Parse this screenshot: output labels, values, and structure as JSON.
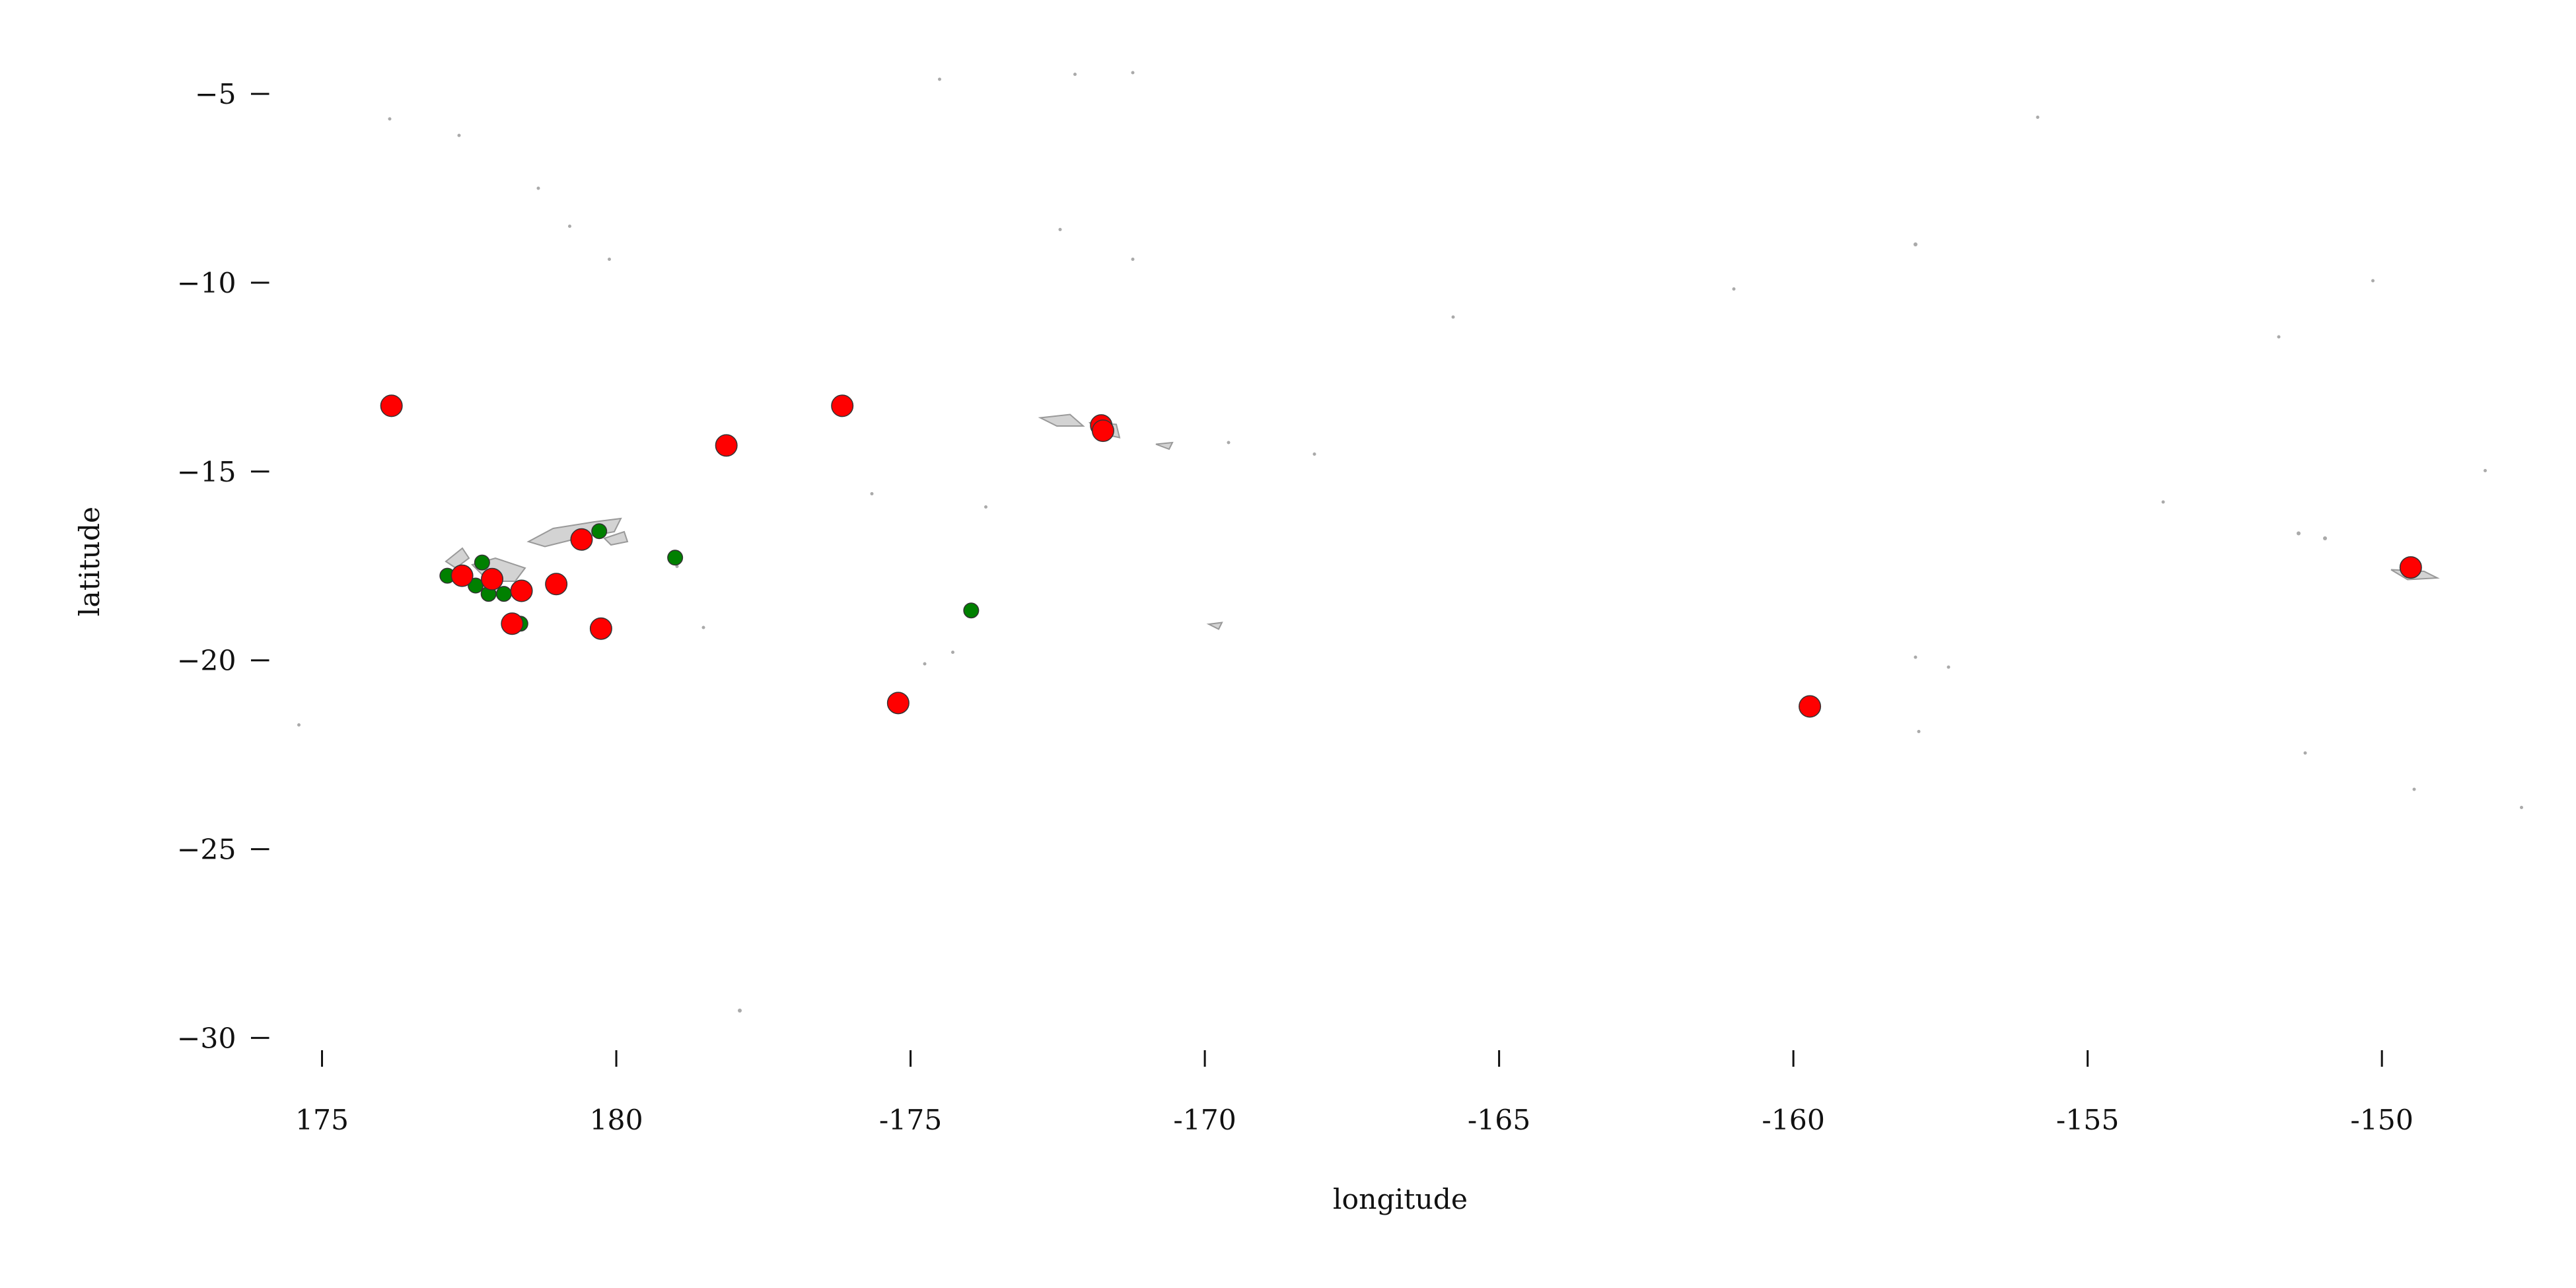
{
  "chart_data": {
    "type": "scatter",
    "xlabel": "longitude",
    "ylabel": "latitude",
    "xlim": [
      174.2,
      212.4
    ],
    "ylim": [
      -30.5,
      -4
    ],
    "xticks": [
      175,
      180,
      {
        "value": 185,
        "label": "-175"
      },
      {
        "value": 190,
        "label": "-170"
      },
      {
        "value": 195,
        "label": "-165"
      },
      {
        "value": 200,
        "label": "-160"
      },
      {
        "value": 205,
        "label": "-155"
      },
      {
        "value": 210,
        "label": "-150"
      }
    ],
    "yticks": [
      {
        "value": -5,
        "label": "−5"
      },
      {
        "value": -10,
        "label": "−10"
      },
      {
        "value": -15,
        "label": "−15"
      },
      {
        "value": -20,
        "label": "−20"
      },
      {
        "value": -25,
        "label": "−25"
      },
      {
        "value": -30,
        "label": "−30"
      }
    ],
    "grid": false,
    "series": [
      {
        "color": "green",
        "x": [
          177.13,
          177.72,
          177.61,
          177.83,
          178.09,
          178.37,
          179.71,
          181.0,
          186.03
        ],
        "values": [
          -17.76,
          -17.41,
          -18.02,
          -18.24,
          -18.24,
          -19.03,
          -16.58,
          -17.28,
          -18.68
        ]
      },
      {
        "color": "red",
        "x": [
          176.18,
          183.84,
          181.87,
          188.24,
          188.27,
          179.41,
          177.38,
          177.89,
          178.39,
          178.98,
          178.23,
          179.74,
          184.79,
          200.28,
          210.49
        ],
        "values": [
          -13.26,
          -13.26,
          -14.31,
          -13.78,
          -13.92,
          -16.8,
          -17.76,
          -17.85,
          -18.16,
          -17.98,
          -19.03,
          -19.16,
          -21.13,
          -21.22,
          -17.54
        ]
      }
    ]
  }
}
